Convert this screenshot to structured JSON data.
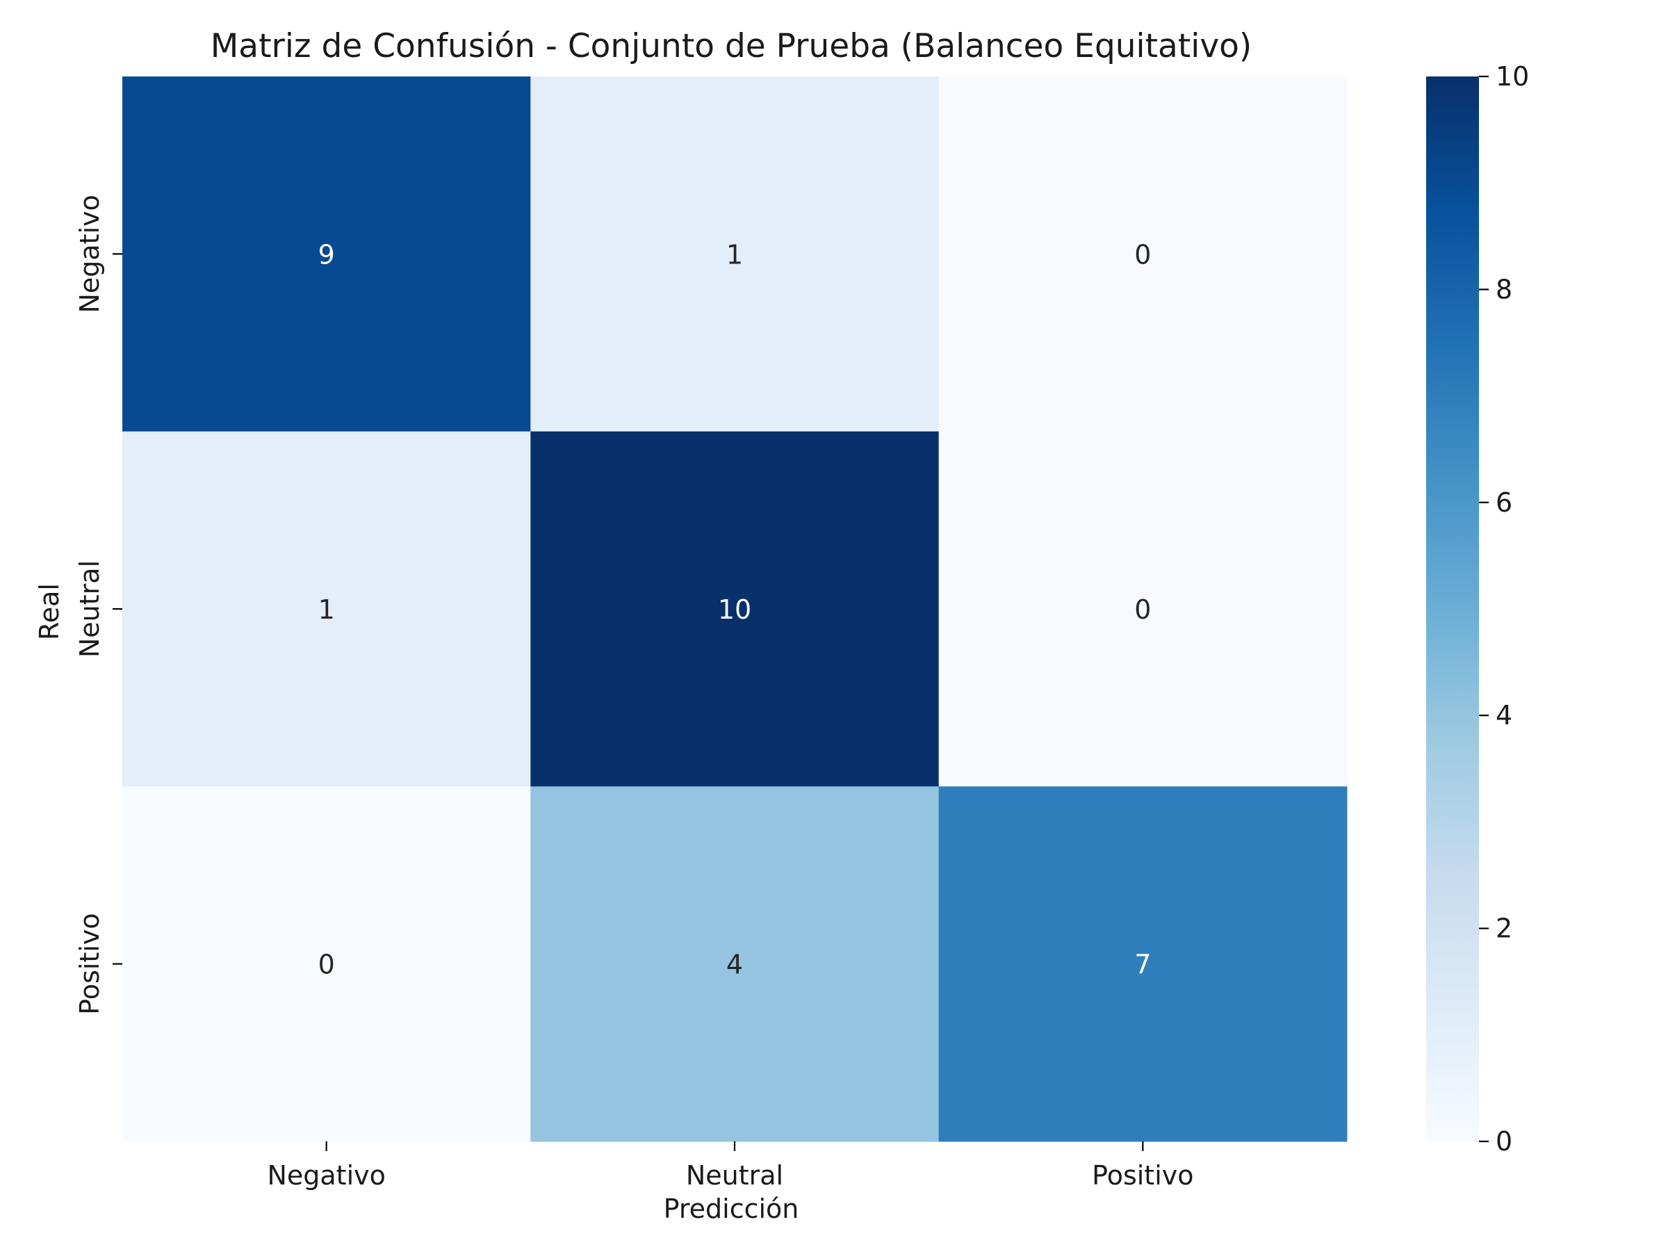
{
  "chart_data": {
    "type": "heatmap",
    "title": "Matriz de Confusión - Conjunto de Prueba (Balanceo Equitativo)",
    "xlabel": "Predicción",
    "ylabel": "Real",
    "x_categories": [
      "Negativo",
      "Neutral",
      "Positivo"
    ],
    "y_categories": [
      "Negativo",
      "Neutral",
      "Positivo"
    ],
    "values": [
      [
        9,
        1,
        0
      ],
      [
        1,
        10,
        0
      ],
      [
        0,
        4,
        7
      ]
    ],
    "colormap": "Blues",
    "colorbar": {
      "range": [
        0,
        10
      ],
      "ticks": [
        0,
        2,
        4,
        6,
        8,
        10
      ]
    },
    "annotation_dark_color": "#262626",
    "annotation_light_color": "#ffffff"
  }
}
